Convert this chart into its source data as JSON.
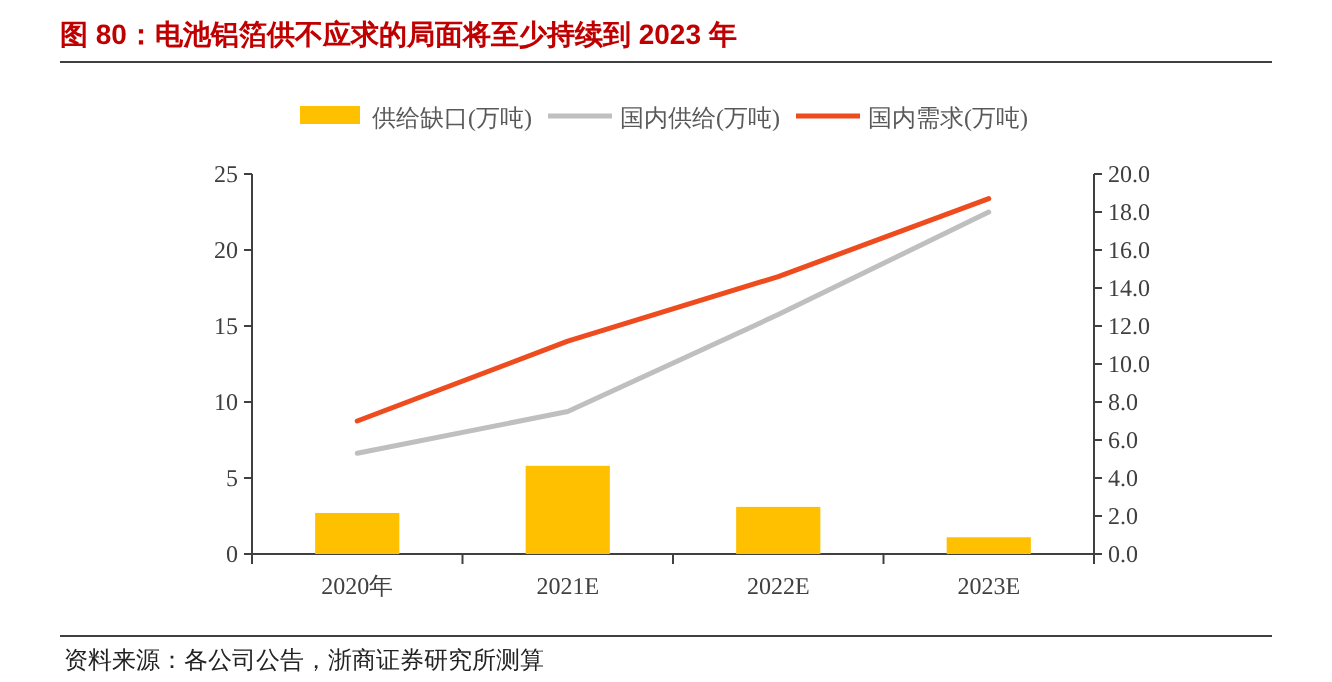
{
  "chart_data": {
    "type": "bar",
    "title": "图 80：电池铝箔供不应求的局面将至少持续到 2023 年",
    "categories": [
      "2020年",
      "2021E",
      "2022E",
      "2023E"
    ],
    "series": [
      {
        "name": "供给缺口(万吨)",
        "color": "#ffc000",
        "values": [
          2.7,
          5.8,
          3.1,
          1.1
        ]
      },
      {
        "name": "国内供给(万吨)",
        "type": "line",
        "axis": "y2",
        "color": "#bfbfbf",
        "values": [
          5.3,
          7.5,
          12.6,
          18.0
        ]
      },
      {
        "name": "国内需求(万吨)",
        "type": "line",
        "axis": "y2",
        "color": "#ee4b1f",
        "values": [
          7.0,
          11.2,
          14.6,
          18.7
        ]
      }
    ],
    "ylim": [
      0,
      25
    ],
    "yticks": [
      0,
      5,
      10,
      15,
      20,
      25
    ],
    "y2lim": [
      0,
      20
    ],
    "y2ticks": [
      {
        "value": 0,
        "label": "0.0"
      },
      {
        "value": 2,
        "label": "2.0"
      },
      {
        "value": 4,
        "label": "4.0"
      },
      {
        "value": 6,
        "label": "6.0"
      },
      {
        "value": 8,
        "label": "8.0"
      },
      {
        "value": 10,
        "label": "10.0"
      },
      {
        "value": 12,
        "label": "12.0"
      },
      {
        "value": 14,
        "label": "14.0"
      },
      {
        "value": 16,
        "label": "16.0"
      },
      {
        "value": 18,
        "label": "18.0"
      },
      {
        "value": 20,
        "label": "20.0"
      }
    ],
    "legend": "top",
    "grid": false,
    "annotations": [
      "资料来源：各公司公告，浙商证券研究所测算"
    ]
  }
}
